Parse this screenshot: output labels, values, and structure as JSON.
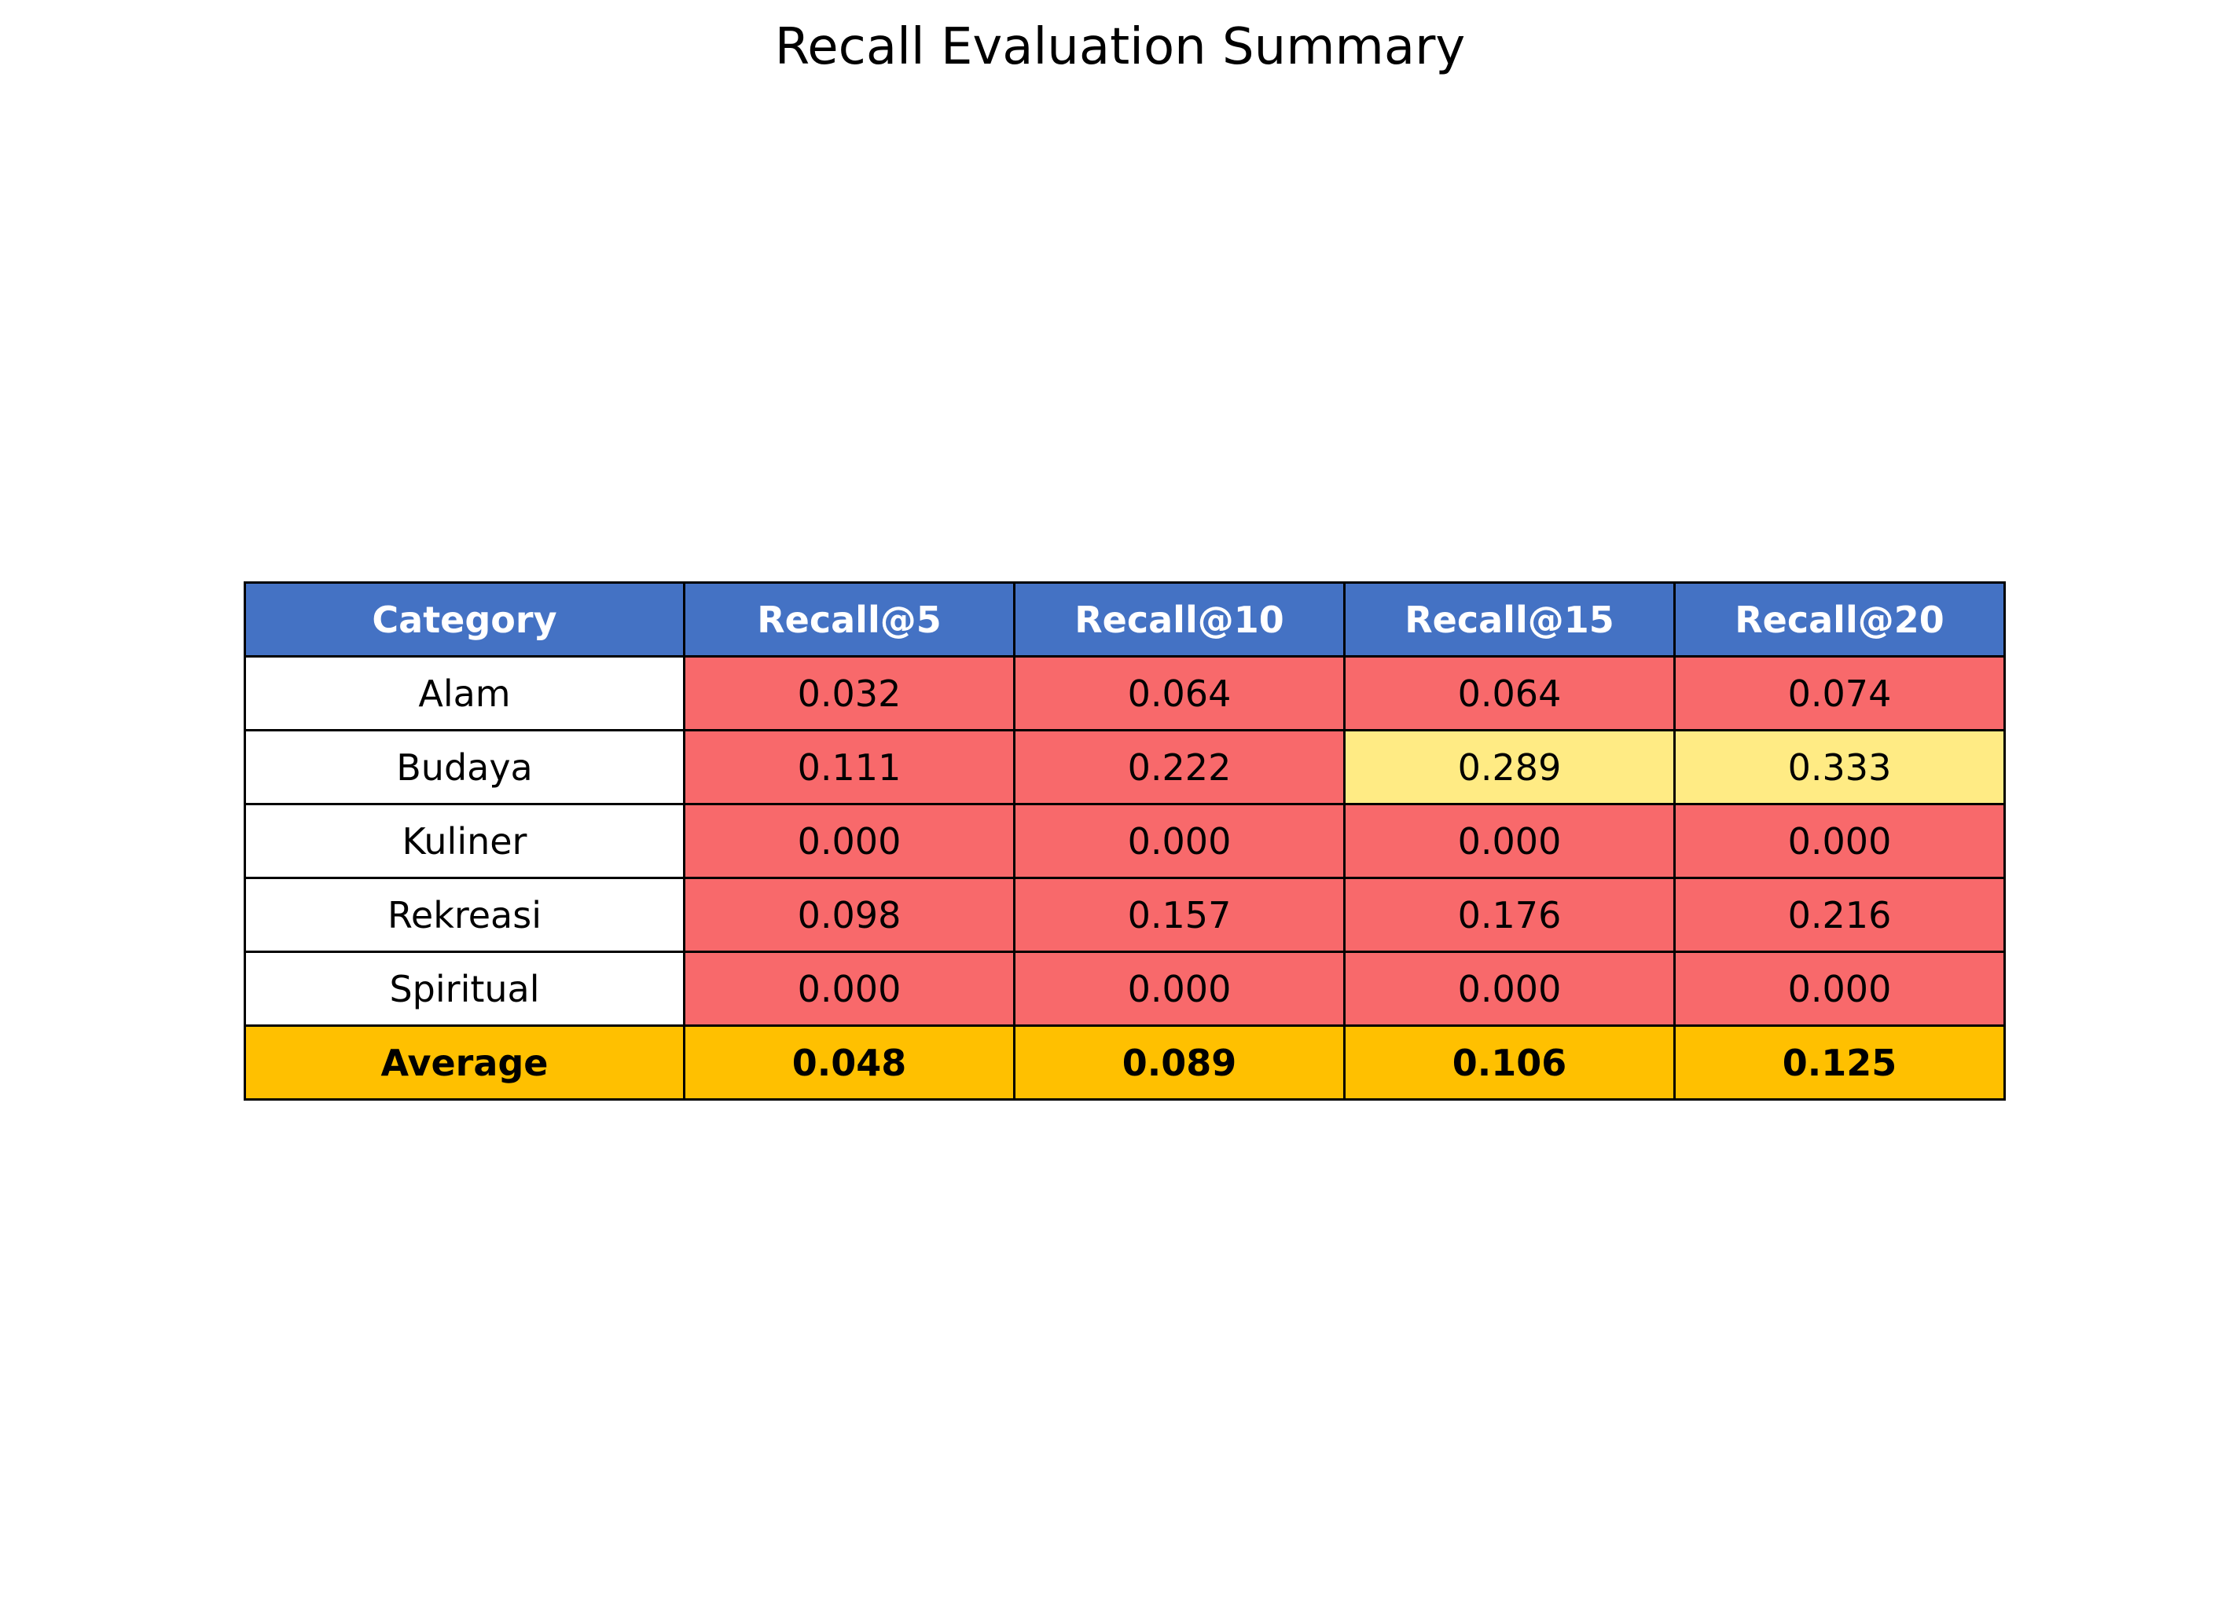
{
  "chart_data": {
    "type": "table",
    "title": "Recall Evaluation Summary",
    "columns": [
      "Category",
      "Recall@5",
      "Recall@10",
      "Recall@15",
      "Recall@20"
    ],
    "rows": [
      {
        "category": "Alam",
        "values": [
          "0.032",
          "0.064",
          "0.064",
          "0.074"
        ]
      },
      {
        "category": "Budaya",
        "values": [
          "0.111",
          "0.222",
          "0.289",
          "0.333"
        ]
      },
      {
        "category": "Kuliner",
        "values": [
          "0.000",
          "0.000",
          "0.000",
          "0.000"
        ]
      },
      {
        "category": "Rekreasi",
        "values": [
          "0.098",
          "0.157",
          "0.176",
          "0.216"
        ]
      },
      {
        "category": "Spiritual",
        "values": [
          "0.000",
          "0.000",
          "0.000",
          "0.000"
        ]
      }
    ],
    "average": {
      "category": "Average",
      "values": [
        "0.048",
        "0.089",
        "0.106",
        "0.125"
      ]
    },
    "colors": {
      "header": "#4472c4",
      "low": "#f8696b",
      "mid": "#ffeb84",
      "average": "#ffc000",
      "category": "#ffffff"
    },
    "color_thresholds": {
      "mid_min": 0.25
    }
  }
}
